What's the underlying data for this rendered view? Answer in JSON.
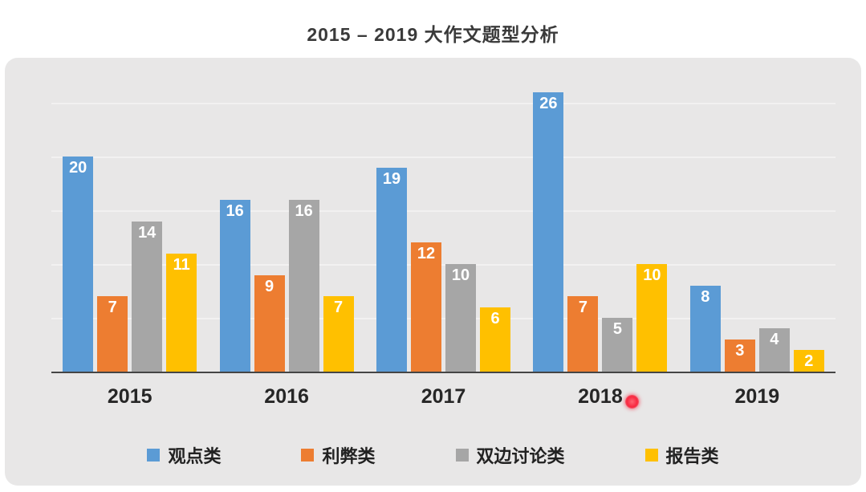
{
  "chart_data": {
    "type": "bar",
    "title": "2015 – 2019 大作文题型分析",
    "categories": [
      "2015",
      "2016",
      "2017",
      "2018",
      "2019"
    ],
    "series": [
      {
        "name": "观点类",
        "color": "#5B9BD5",
        "values": [
          20,
          16,
          19,
          26,
          8
        ]
      },
      {
        "name": "利弊类",
        "color": "#ED7D31",
        "values": [
          7,
          9,
          12,
          7,
          3
        ]
      },
      {
        "name": "双边讨论类",
        "color": "#A6A6A6",
        "values": [
          14,
          16,
          10,
          5,
          4
        ]
      },
      {
        "name": "报告类",
        "color": "#FFC000",
        "values": [
          11,
          7,
          6,
          10,
          2
        ]
      }
    ],
    "ylim": [
      0,
      26
    ],
    "gridline_interval": 5,
    "grid": "on",
    "legend_position": "bottom",
    "value_labels": "inside-top",
    "xlabel": "",
    "ylabel": ""
  },
  "annotations": {
    "pointer_dot": {
      "color": "#f8273f",
      "near_category": "2018"
    }
  }
}
